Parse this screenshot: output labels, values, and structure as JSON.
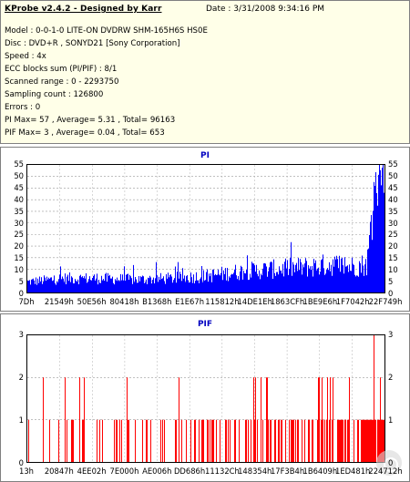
{
  "info": {
    "title": "KProbe v2.4.2 - Designed by Karr",
    "date": "Date : 3/31/2008 9:34:16 PM",
    "lines": [
      "Model : 0-0-1-0 LITE-ON DVDRW SHM-165H6S HS0E",
      "Disc : DVD+R , SONYD21 [Sony Corporation]",
      "Speed : 4x",
      "ECC blocks sum (PI/PIF) : 8/1",
      "Scanned range : 0 - 2293750",
      "Sampling count : 126800",
      "Errors : 0",
      "PI Max= 57 , Average= 5.31 , Total= 96163",
      "PIF Max= 3 , Average= 0.04 , Total= 653"
    ]
  },
  "chart_data": [
    {
      "type": "bar",
      "title": "PI",
      "color": "#0000ff",
      "ylim": [
        0,
        57
      ],
      "yticks": [
        "55",
        "50",
        "45",
        "40",
        "35",
        "30",
        "25",
        "20",
        "15",
        "10",
        "5",
        "0"
      ],
      "xticks": [
        "7Dh",
        "21549h",
        "50E56h",
        "80418h",
        "B1368h",
        "E1E67h",
        "115812h",
        "14DE1Eh",
        "1863CFh",
        "1BE9E6h",
        "1F7042h",
        "22F749h"
      ],
      "grid": true,
      "summary": {
        "max": 57,
        "average": 5.31,
        "total": 96163
      },
      "profile": [
        {
          "x": 0.0,
          "y": 4.5
        },
        {
          "x": 0.1,
          "y": 6
        },
        {
          "x": 0.2,
          "y": 6
        },
        {
          "x": 0.3,
          "y": 5.5
        },
        {
          "x": 0.4,
          "y": 6
        },
        {
          "x": 0.5,
          "y": 7
        },
        {
          "x": 0.6,
          "y": 9
        },
        {
          "x": 0.7,
          "y": 10
        },
        {
          "x": 0.8,
          "y": 11
        },
        {
          "x": 0.85,
          "y": 12
        },
        {
          "x": 0.9,
          "y": 11
        },
        {
          "x": 0.95,
          "y": 12
        },
        {
          "x": 0.97,
          "y": 40
        },
        {
          "x": 1.0,
          "y": 50
        }
      ]
    },
    {
      "type": "bar",
      "title": "PIF",
      "color": "#ff0000",
      "ylim": [
        0,
        3
      ],
      "yticks": [
        "3",
        "2",
        "1",
        "0"
      ],
      "xticks": [
        "13h",
        "20847h",
        "4EE02h",
        "7E000h",
        "AE006h",
        "DD686h",
        "11132Ch",
        "148354h",
        "17F3B4h",
        "1B6409h",
        "1ED481h",
        "224712h"
      ],
      "grid": true,
      "summary": {
        "max": 3,
        "average": 0.04,
        "total": 653
      }
    }
  ]
}
